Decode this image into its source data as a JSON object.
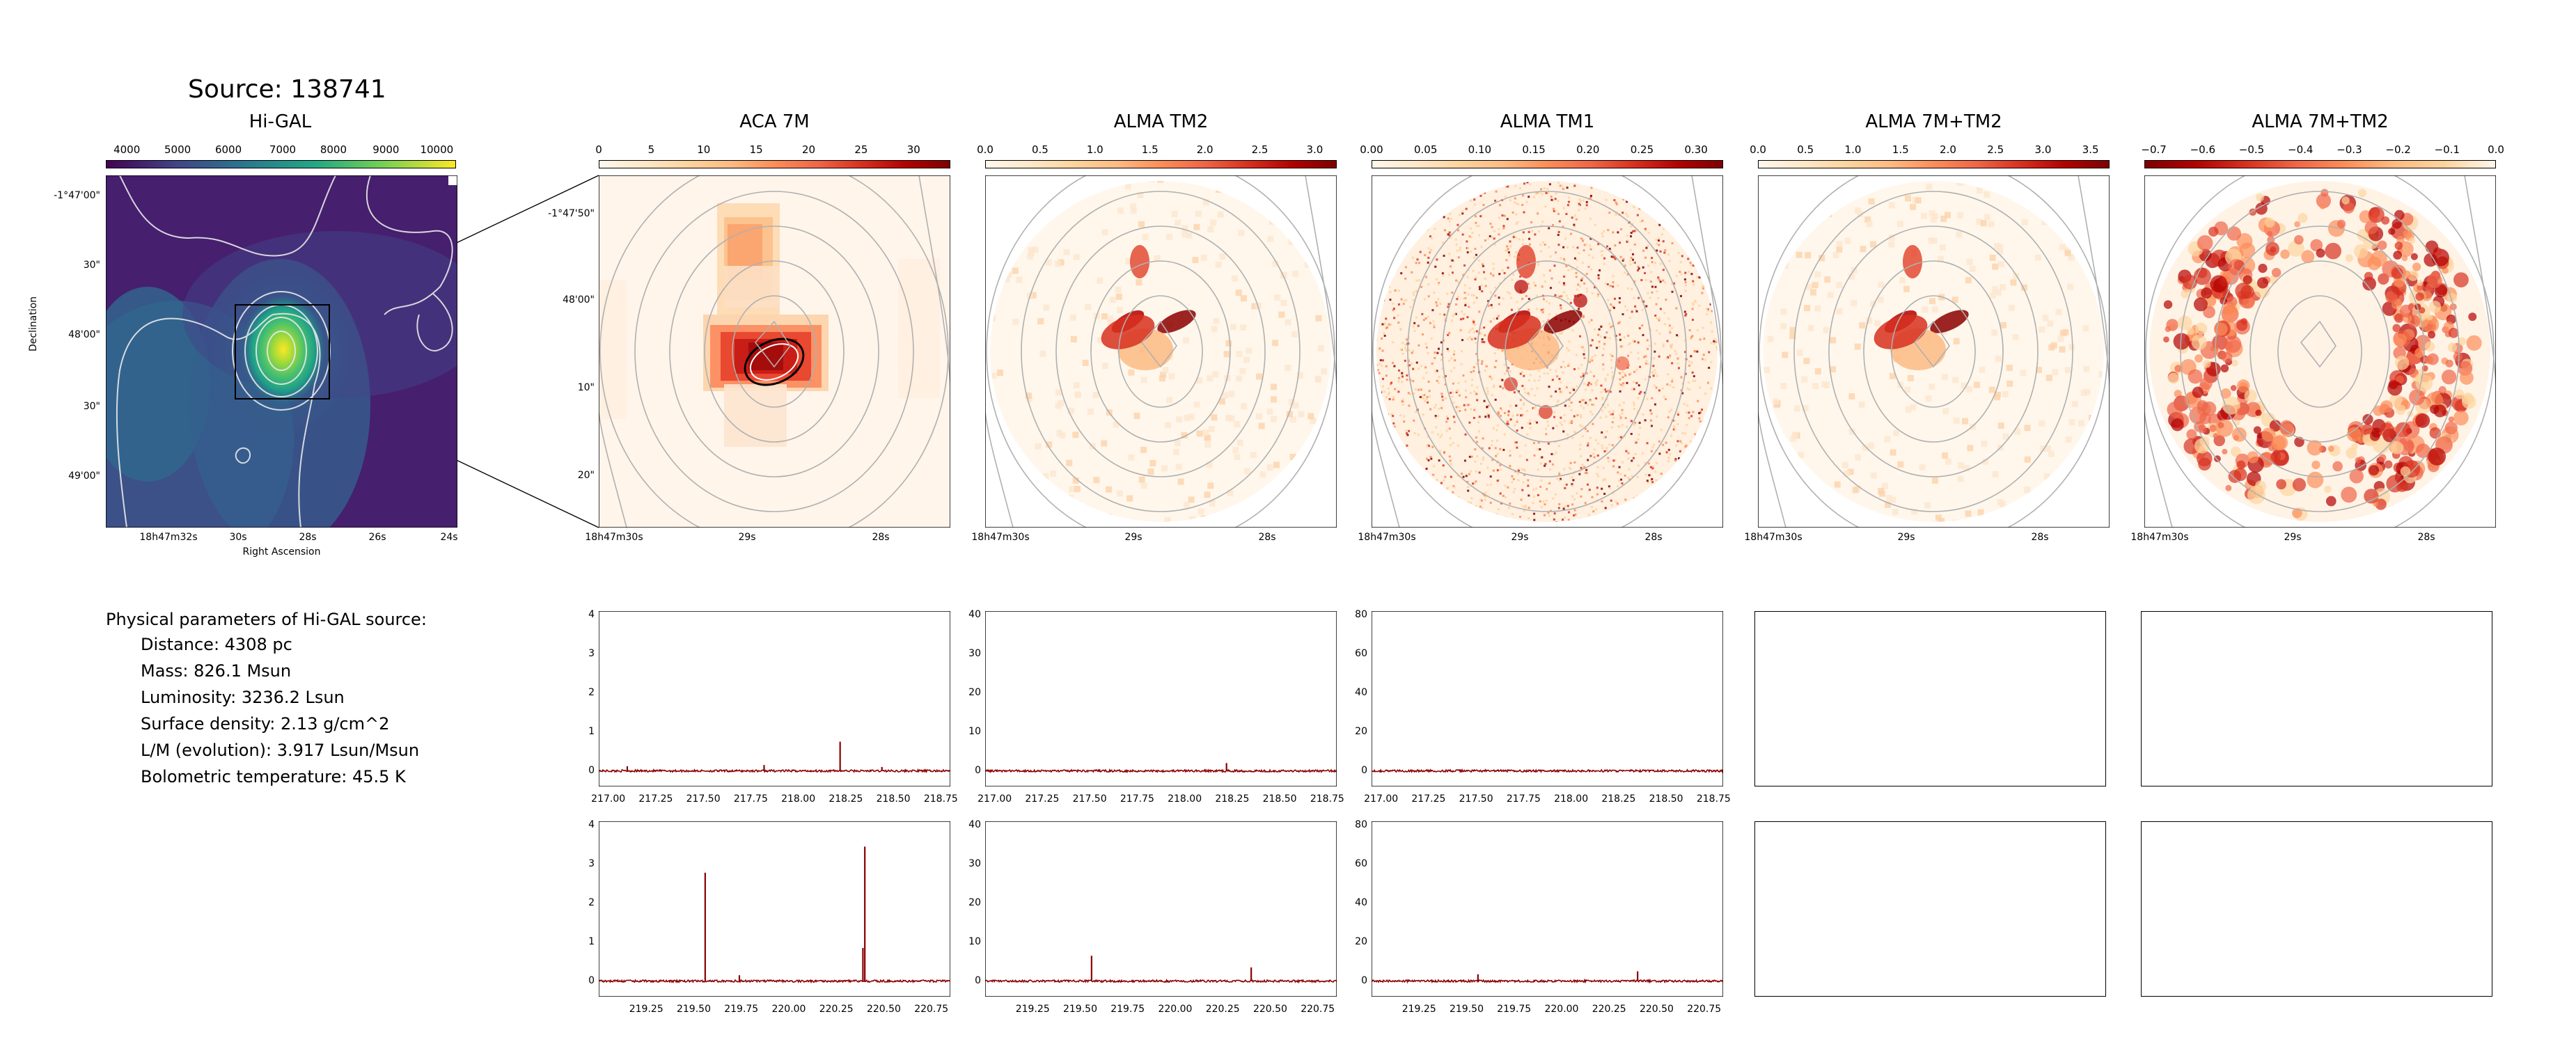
{
  "source_title": "Source: 138741",
  "colors": {
    "viridis": [
      "#440154",
      "#3b528b",
      "#21918c",
      "#5ec962",
      "#fde725"
    ],
    "orrd": [
      "#fff7ec",
      "#fdd49e",
      "#fc8d59",
      "#d7301f",
      "#7f0000"
    ],
    "spectrum_line": "#8b0000",
    "contour_gray": "#aaaaaa"
  },
  "higal_panel": {
    "title": "Hi-GAL",
    "colorbar_ticks": [
      "4000",
      "5000",
      "6000",
      "7000",
      "8000",
      "9000",
      "10000"
    ],
    "y_ticks": [
      "-1°47'00\"",
      "30\"",
      "48'00\"",
      "30\"",
      "49'00\""
    ],
    "x_ticks": [
      "18h47m32s",
      "30s",
      "28s",
      "26s",
      "24s"
    ],
    "xlabel": "Right Ascension",
    "ylabel": "Declination"
  },
  "map_panels": [
    {
      "title": "ACA 7M",
      "colorbar_ticks": [
        "0",
        "5",
        "10",
        "15",
        "20",
        "25",
        "30"
      ],
      "y_ticks": [
        "-1°47'50\"",
        "48'00\"",
        "10\"",
        "20\""
      ],
      "x_ticks": [
        "18h47m30s",
        "29s",
        "28s"
      ]
    },
    {
      "title": "ALMA TM2",
      "colorbar_ticks": [
        "0.0",
        "0.5",
        "1.0",
        "1.5",
        "2.0",
        "2.5",
        "3.0"
      ],
      "x_ticks": [
        "18h47m30s",
        "29s",
        "28s"
      ]
    },
    {
      "title": "ALMA TM1",
      "colorbar_ticks": [
        "0.00",
        "0.05",
        "0.10",
        "0.15",
        "0.20",
        "0.25",
        "0.30"
      ],
      "x_ticks": [
        "18h47m30s",
        "29s",
        "28s"
      ]
    },
    {
      "title": "ALMA 7M+TM2",
      "colorbar_ticks": [
        "0.0",
        "0.5",
        "1.0",
        "1.5",
        "2.0",
        "2.5",
        "3.0",
        "3.5"
      ],
      "x_ticks": [
        "18h47m30s",
        "29s",
        "28s"
      ]
    },
    {
      "title": "ALMA 7M+TM2",
      "colorbar_ticks": [
        "−0.7",
        "−0.6",
        "−0.5",
        "−0.4",
        "−0.3",
        "−0.2",
        "−0.1",
        "0.0"
      ],
      "x_ticks": [
        "18h47m30s",
        "29s",
        "28s"
      ]
    }
  ],
  "physical": {
    "heading": "Physical parameters of Hi-GAL source:",
    "items": [
      "Distance: 4308 pc",
      "Mass: 826.1 Msun",
      "Luminosity: 3236.2 Lsun",
      "Surface density: 2.13 g/cm^2",
      "L/M (evolution): 3.917 Lsun/Msun",
      "Bolometric temperature: 45.5 K"
    ]
  },
  "chart_data": [
    {
      "type": "line",
      "panel": "ACA 7M spectrum 1",
      "xlim": [
        216.95,
        218.8
      ],
      "ylim": [
        -0.4,
        4.1
      ],
      "x_ticks": [
        "217.00",
        "217.25",
        "217.50",
        "217.75",
        "218.00",
        "218.25",
        "218.50",
        "218.75"
      ],
      "y_ticks": [
        "0",
        "1",
        "2",
        "3",
        "4"
      ],
      "baseline": 0,
      "peaks": [
        {
          "x": 218.22,
          "y": 0.75
        },
        {
          "x": 217.1,
          "y": 0.12
        },
        {
          "x": 217.82,
          "y": 0.15
        },
        {
          "x": 218.44,
          "y": 0.1
        }
      ]
    },
    {
      "type": "line",
      "panel": "ALMA TM2 spectrum 1",
      "xlim": [
        216.95,
        218.8
      ],
      "ylim": [
        -4,
        41
      ],
      "x_ticks": [
        "217.00",
        "217.25",
        "217.50",
        "217.75",
        "218.00",
        "218.25",
        "218.50",
        "218.75"
      ],
      "y_ticks": [
        "0",
        "10",
        "20",
        "30",
        "40"
      ],
      "baseline": 0,
      "peaks": [
        {
          "x": 218.22,
          "y": 2.0
        }
      ]
    },
    {
      "type": "line",
      "panel": "ALMA TM1 spectrum 1",
      "xlim": [
        216.95,
        218.8
      ],
      "ylim": [
        -8,
        82
      ],
      "x_ticks": [
        "217.00",
        "217.25",
        "217.50",
        "217.75",
        "218.00",
        "218.25",
        "218.50",
        "218.75"
      ],
      "y_ticks": [
        "0",
        "20",
        "40",
        "60",
        "80"
      ],
      "baseline": 0,
      "peaks": []
    },
    {
      "type": "line",
      "panel": "ACA 7M spectrum 2",
      "xlim": [
        219.0,
        220.85
      ],
      "ylim": [
        -0.4,
        4.1
      ],
      "x_ticks": [
        "219.25",
        "219.50",
        "219.75",
        "220.00",
        "220.25",
        "220.50",
        "220.75"
      ],
      "y_ticks": [
        "0",
        "1",
        "2",
        "3",
        "4"
      ],
      "baseline": 0,
      "peaks": [
        {
          "x": 219.56,
          "y": 2.78
        },
        {
          "x": 220.4,
          "y": 3.45
        },
        {
          "x": 220.39,
          "y": 0.85
        },
        {
          "x": 219.74,
          "y": 0.15
        }
      ]
    },
    {
      "type": "line",
      "panel": "ALMA TM2 spectrum 2",
      "xlim": [
        219.0,
        220.85
      ],
      "ylim": [
        -4,
        41
      ],
      "x_ticks": [
        "219.25",
        "219.50",
        "219.75",
        "220.00",
        "220.25",
        "220.50",
        "220.75"
      ],
      "y_ticks": [
        "0",
        "10",
        "20",
        "30",
        "40"
      ],
      "baseline": 0,
      "peaks": [
        {
          "x": 219.56,
          "y": 6.5
        },
        {
          "x": 220.4,
          "y": 3.5
        }
      ]
    },
    {
      "type": "line",
      "panel": "ALMA TM1 spectrum 2",
      "xlim": [
        219.0,
        220.85
      ],
      "ylim": [
        -8,
        82
      ],
      "x_ticks": [
        "219.25",
        "219.50",
        "219.75",
        "220.00",
        "220.25",
        "220.50",
        "220.75"
      ],
      "y_ticks": [
        "0",
        "20",
        "40",
        "60",
        "80"
      ],
      "baseline": 0,
      "peaks": [
        {
          "x": 219.56,
          "y": 3.5
        },
        {
          "x": 220.4,
          "y": 5.0
        }
      ]
    }
  ]
}
